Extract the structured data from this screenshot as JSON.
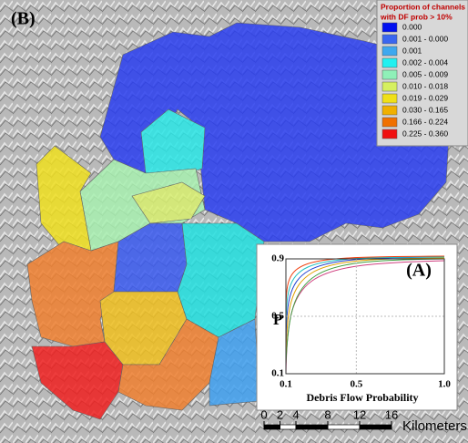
{
  "panel_label": "(B)",
  "legend": {
    "title": [
      "Proportion of channels",
      "with DF prob > 10%"
    ],
    "items": [
      {
        "label": "0.000",
        "color": "#0010f0"
      },
      {
        "label": "0.001 - 0.000",
        "color": "#3a66f0"
      },
      {
        "label": "0.001",
        "color": "#3ea8ef"
      },
      {
        "label": "0.002 - 0.004",
        "color": "#22f0f0"
      },
      {
        "label": "0.005 - 0.009",
        "color": "#8ff0b8"
      },
      {
        "label": "0.010 - 0.018",
        "color": "#d6f060"
      },
      {
        "label": "0.019 - 0.029",
        "color": "#f0e018"
      },
      {
        "label": "0.030 - 0.165",
        "color": "#f0b000"
      },
      {
        "label": "0.166 - 0.224",
        "color": "#f07000"
      },
      {
        "label": "0.225 - 0.360",
        "color": "#f01010"
      }
    ]
  },
  "inset": {
    "label": "(A)",
    "y_label": "P",
    "x_label": "Debris Flow Probability",
    "xlim": [
      0.1,
      1
    ],
    "ylim": [
      0.1,
      0.9
    ],
    "xticks": [
      0.1,
      0.5,
      {
        "value": 1,
        "label": "1.0"
      }
    ],
    "yticks": [
      0.1,
      0.5,
      0.9
    ]
  },
  "scale_bar": {
    "ticks": [
      0,
      2,
      4,
      8,
      12,
      16
    ],
    "unit": "Kilometers"
  }
}
